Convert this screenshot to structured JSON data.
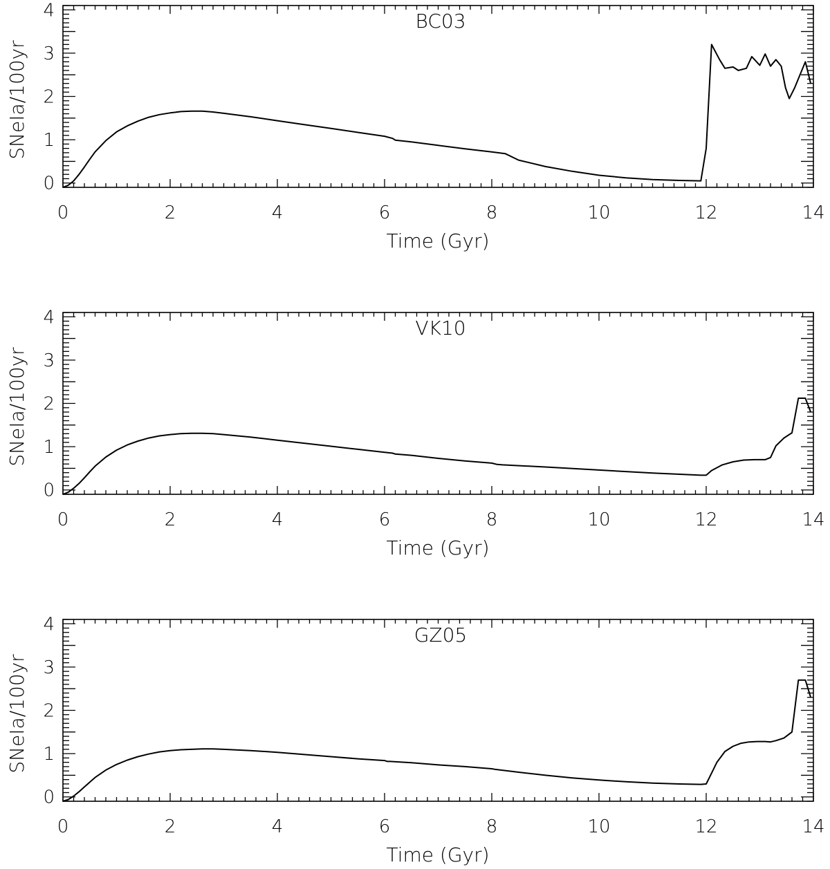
{
  "chart_data": [
    {
      "type": "line",
      "title": "BC03",
      "xlabel": "Time (Gyr)",
      "ylabel": "SNeIa/100yr",
      "xlim": [
        0,
        14
      ],
      "ylim": [
        -0.1,
        4.1
      ],
      "xticks": [
        0,
        2,
        4,
        6,
        8,
        10,
        12,
        14
      ],
      "xtick_labels": [
        "0",
        "2",
        "4",
        "6",
        "8",
        "10",
        "12",
        "14"
      ],
      "yticks": [
        0,
        1,
        2,
        3,
        4
      ],
      "ytick_labels": [
        "0",
        "1",
        "2",
        "3",
        "4"
      ],
      "grid": false,
      "series": [
        {
          "x": [
            0.0,
            0.1,
            0.2,
            0.3,
            0.4,
            0.5,
            0.6,
            0.8,
            1.0,
            1.2,
            1.4,
            1.6,
            1.8,
            2.0,
            2.2,
            2.4,
            2.6,
            2.8,
            3.0,
            3.5,
            4.0,
            4.5,
            5.0,
            5.5,
            6.0,
            6.15,
            6.2,
            6.5,
            7.0,
            7.5,
            8.0,
            8.25,
            8.5,
            9.0,
            9.5,
            10.0,
            10.5,
            11.0,
            11.5,
            11.9,
            12.0,
            12.1,
            12.25,
            12.35,
            12.5,
            12.6,
            12.75,
            12.85,
            13.0,
            13.1,
            13.2,
            13.3,
            13.4,
            13.48,
            13.55,
            13.65,
            13.75,
            13.85,
            13.95
          ],
          "y": [
            -0.1,
            -0.05,
            0.05,
            0.2,
            0.37,
            0.55,
            0.72,
            0.98,
            1.18,
            1.32,
            1.43,
            1.52,
            1.58,
            1.62,
            1.65,
            1.66,
            1.66,
            1.64,
            1.61,
            1.53,
            1.44,
            1.35,
            1.26,
            1.17,
            1.08,
            1.03,
            0.99,
            0.95,
            0.87,
            0.79,
            0.72,
            0.68,
            0.53,
            0.38,
            0.27,
            0.18,
            0.12,
            0.08,
            0.06,
            0.05,
            0.8,
            3.2,
            2.85,
            2.65,
            2.68,
            2.6,
            2.65,
            2.92,
            2.72,
            2.98,
            2.7,
            2.85,
            2.7,
            2.2,
            1.95,
            2.2,
            2.5,
            2.8,
            2.3
          ]
        }
      ]
    },
    {
      "type": "line",
      "title": "VK10",
      "xlabel": "Time (Gyr)",
      "ylabel": "SNeIa/100yr",
      "xlim": [
        0,
        14
      ],
      "ylim": [
        -0.1,
        4.1
      ],
      "xticks": [
        0,
        2,
        4,
        6,
        8,
        10,
        12,
        14
      ],
      "xtick_labels": [
        "0",
        "2",
        "4",
        "6",
        "8",
        "10",
        "12",
        "14"
      ],
      "yticks": [
        0,
        1,
        2,
        3,
        4
      ],
      "ytick_labels": [
        "0",
        "1",
        "2",
        "3",
        "4"
      ],
      "grid": false,
      "series": [
        {
          "x": [
            0.0,
            0.1,
            0.2,
            0.3,
            0.4,
            0.5,
            0.6,
            0.8,
            1.0,
            1.2,
            1.4,
            1.6,
            1.8,
            2.0,
            2.2,
            2.4,
            2.6,
            2.8,
            3.0,
            3.5,
            4.0,
            4.5,
            5.0,
            5.5,
            6.0,
            6.15,
            6.2,
            6.5,
            7.0,
            7.5,
            8.0,
            8.1,
            8.2,
            9.0,
            10.0,
            11.0,
            11.9,
            12.0,
            12.1,
            12.3,
            12.5,
            12.7,
            12.9,
            13.1,
            13.2,
            13.3,
            13.45,
            13.6,
            13.72,
            13.85,
            13.95
          ],
          "y": [
            -0.1,
            -0.05,
            0.04,
            0.15,
            0.28,
            0.42,
            0.55,
            0.76,
            0.92,
            1.04,
            1.13,
            1.2,
            1.25,
            1.28,
            1.3,
            1.31,
            1.31,
            1.3,
            1.28,
            1.22,
            1.15,
            1.08,
            1.01,
            0.94,
            0.87,
            0.85,
            0.83,
            0.8,
            0.73,
            0.67,
            0.62,
            0.59,
            0.58,
            0.53,
            0.46,
            0.39,
            0.34,
            0.34,
            0.45,
            0.58,
            0.65,
            0.69,
            0.7,
            0.7,
            0.75,
            1.02,
            1.2,
            1.32,
            2.12,
            2.12,
            1.8
          ]
        }
      ]
    },
    {
      "type": "line",
      "title": "GZ05",
      "xlabel": "Time (Gyr)",
      "ylabel": "SNeIa/100yr",
      "xlim": [
        0,
        14
      ],
      "ylim": [
        -0.1,
        4.1
      ],
      "xticks": [
        0,
        2,
        4,
        6,
        8,
        10,
        12,
        14
      ],
      "xtick_labels": [
        "0",
        "2",
        "4",
        "6",
        "8",
        "10",
        "12",
        "14"
      ],
      "yticks": [
        0,
        1,
        2,
        3,
        4
      ],
      "ytick_labels": [
        "0",
        "1",
        "2",
        "3",
        "4"
      ],
      "grid": false,
      "series": [
        {
          "x": [
            0.0,
            0.1,
            0.2,
            0.3,
            0.4,
            0.5,
            0.6,
            0.8,
            1.0,
            1.2,
            1.4,
            1.6,
            1.8,
            2.0,
            2.2,
            2.4,
            2.6,
            2.8,
            3.0,
            3.5,
            4.0,
            4.5,
            5.0,
            5.5,
            6.0,
            6.05,
            6.1,
            6.5,
            7.0,
            7.5,
            8.0,
            8.05,
            8.5,
            9.0,
            9.5,
            10.0,
            10.5,
            11.0,
            11.5,
            11.9,
            12.0,
            12.1,
            12.2,
            12.35,
            12.5,
            12.65,
            12.8,
            12.95,
            13.1,
            13.2,
            13.3,
            13.45,
            13.6,
            13.72,
            13.85,
            13.95
          ],
          "y": [
            -0.1,
            -0.06,
            0.02,
            0.12,
            0.23,
            0.34,
            0.45,
            0.62,
            0.75,
            0.85,
            0.93,
            0.99,
            1.04,
            1.07,
            1.09,
            1.1,
            1.11,
            1.11,
            1.1,
            1.07,
            1.03,
            0.98,
            0.93,
            0.88,
            0.84,
            0.82,
            0.82,
            0.79,
            0.74,
            0.7,
            0.65,
            0.64,
            0.57,
            0.5,
            0.44,
            0.39,
            0.35,
            0.32,
            0.3,
            0.29,
            0.3,
            0.55,
            0.8,
            1.05,
            1.17,
            1.24,
            1.27,
            1.28,
            1.28,
            1.27,
            1.3,
            1.36,
            1.5,
            2.7,
            2.7,
            2.3
          ]
        }
      ]
    }
  ]
}
